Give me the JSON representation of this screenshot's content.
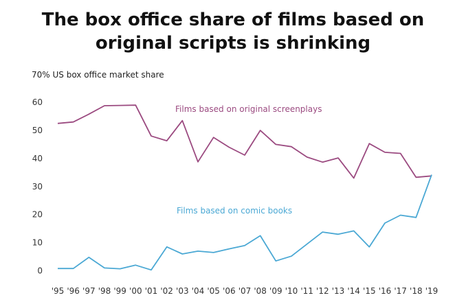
{
  "title_lines": [
    "The box office share of films based on",
    "original scripts is shrinking"
  ],
  "chart_data": {
    "type": "line",
    "title": "The box office share of films based on original scripts is shrinking",
    "ylabel": "70% US box office market share",
    "xlabel": "",
    "ylim": [
      0,
      70
    ],
    "yticks": [
      0,
      10,
      20,
      30,
      40,
      50,
      60
    ],
    "grid": false,
    "x": [
      "'95",
      "'96",
      "'97",
      "'98",
      "'99",
      "'00",
      "'01",
      "'02",
      "'03",
      "'04",
      "'05",
      "'06",
      "'07",
      "'08",
      "'09",
      "'10",
      "'11",
      "'12",
      "'13",
      "'14",
      "'15",
      "'16",
      "'17",
      "'18",
      "'19"
    ],
    "series": [
      {
        "name": "Films based on original screenplays",
        "color": "#9b4a80",
        "values": [
          52.5,
          53,
          55.8,
          58.8,
          58.9,
          59,
          48,
          46.3,
          53.5,
          38.8,
          47.5,
          44,
          41.2,
          50,
          45,
          44.2,
          40.5,
          38.7,
          40.2,
          33,
          45.3,
          42.2,
          41.8,
          33.3,
          33.8
        ]
      },
      {
        "name": "Films based on comic books",
        "color": "#4aa8d4",
        "values": [
          0.8,
          0.8,
          4.8,
          1,
          0.7,
          2,
          0.3,
          8.5,
          6,
          7,
          6.5,
          7.8,
          9,
          12.5,
          3.5,
          5.2,
          9.5,
          13.8,
          13,
          14.2,
          8.5,
          17,
          19.8,
          19,
          34.2
        ]
      }
    ]
  }
}
